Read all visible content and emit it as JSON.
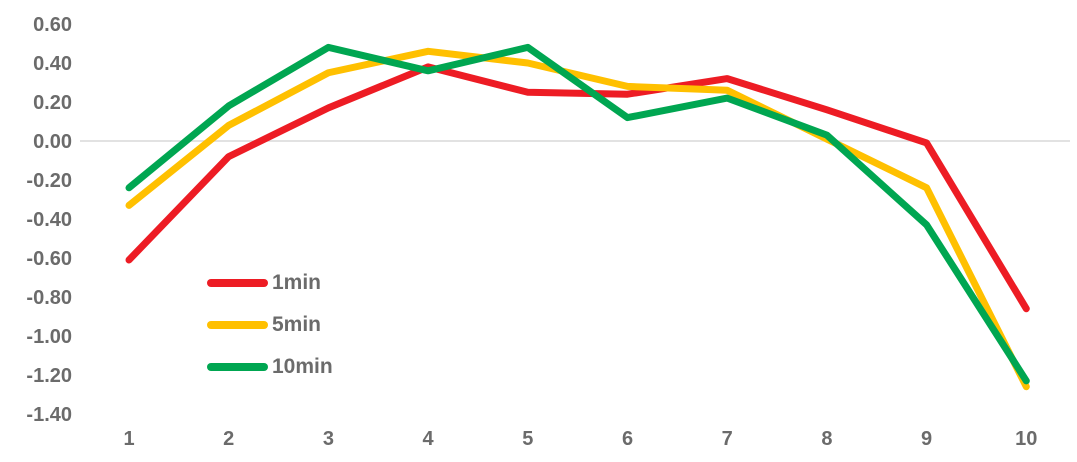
{
  "chart_data": {
    "type": "line",
    "title": "",
    "xlabel": "",
    "ylabel": "",
    "x": [
      1,
      2,
      3,
      4,
      5,
      6,
      7,
      8,
      9,
      10
    ],
    "xticks": [
      "1",
      "2",
      "3",
      "4",
      "5",
      "6",
      "7",
      "8",
      "9",
      "10"
    ],
    "yticks": [
      "0.60",
      "0.40",
      "0.20",
      "0.00",
      "-0.20",
      "-0.40",
      "-0.60",
      "-0.80",
      "-1.00",
      "-1.20",
      "-1.40"
    ],
    "ylim": [
      -1.4,
      0.6
    ],
    "ytick_step": 0.2,
    "grid": "zero-line-only",
    "legend_position": "inside-lower-left",
    "colors": {
      "gridline": "#D8D8D8",
      "tick_text": "#6B6B6B"
    },
    "series": [
      {
        "name": "1min",
        "color": "#ED1C24",
        "values": [
          -0.61,
          -0.08,
          0.17,
          0.38,
          0.25,
          0.24,
          0.32,
          0.16,
          -0.01,
          -0.86
        ]
      },
      {
        "name": "5min",
        "color": "#FFC000",
        "values": [
          -0.33,
          0.08,
          0.35,
          0.46,
          0.4,
          0.28,
          0.26,
          0.01,
          -0.24,
          -1.26
        ]
      },
      {
        "name": "10min",
        "color": "#00A651",
        "values": [
          -0.24,
          0.18,
          0.48,
          0.36,
          0.48,
          0.12,
          0.22,
          0.03,
          -0.43,
          -1.23
        ]
      }
    ]
  }
}
